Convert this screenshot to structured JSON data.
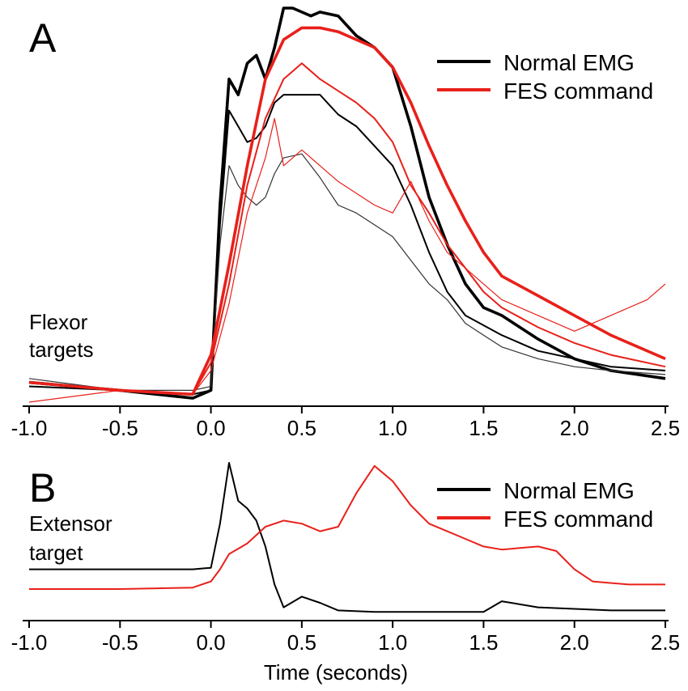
{
  "chart_data": [
    {
      "type": "line",
      "panel_label": "A",
      "side_label": [
        "Flexor",
        "targets"
      ],
      "xlabel": "",
      "ylabel": "",
      "xlim": [
        -1.0,
        2.5
      ],
      "x_ticks": [
        "-1.0",
        "-0.5",
        "0.0",
        "0.5",
        "1.0",
        "1.5",
        "2.0",
        "2.5"
      ],
      "legend_position": "top-right",
      "legend": [
        {
          "label": "Normal EMG",
          "color": "#000000"
        },
        {
          "label": "FES command",
          "color": "#e8201a"
        }
      ],
      "series": [
        {
          "group": "Normal EMG",
          "color": "#000000",
          "weight": "thick",
          "x": [
            -1.0,
            -0.5,
            -0.1,
            0.0,
            0.05,
            0.1,
            0.15,
            0.2,
            0.25,
            0.3,
            0.35,
            0.4,
            0.45,
            0.5,
            0.55,
            0.6,
            0.7,
            0.8,
            0.9,
            1.0,
            1.1,
            1.2,
            1.3,
            1.4,
            1.5,
            1.6,
            1.8,
            2.0,
            2.2,
            2.5
          ],
          "y": [
            0.05,
            0.03,
            0.01,
            0.03,
            0.5,
            0.82,
            0.78,
            0.86,
            0.88,
            0.82,
            0.9,
            1.0,
            1.0,
            0.99,
            0.98,
            0.99,
            0.98,
            0.93,
            0.9,
            0.85,
            0.7,
            0.52,
            0.4,
            0.3,
            0.24,
            0.22,
            0.16,
            0.11,
            0.08,
            0.06
          ]
        },
        {
          "group": "Normal EMG",
          "color": "#000000",
          "weight": "thin",
          "x": [
            -1.0,
            -0.5,
            -0.1,
            0.0,
            0.05,
            0.1,
            0.15,
            0.2,
            0.25,
            0.3,
            0.35,
            0.4,
            0.5,
            0.6,
            0.7,
            0.8,
            0.9,
            1.0,
            1.1,
            1.2,
            1.3,
            1.4,
            1.6,
            1.8,
            2.0,
            2.2,
            2.5
          ],
          "y": [
            0.04,
            0.03,
            0.02,
            0.03,
            0.45,
            0.74,
            0.7,
            0.66,
            0.67,
            0.7,
            0.76,
            0.78,
            0.78,
            0.78,
            0.73,
            0.7,
            0.65,
            0.6,
            0.5,
            0.38,
            0.28,
            0.22,
            0.17,
            0.13,
            0.11,
            0.09,
            0.08
          ]
        },
        {
          "group": "Normal EMG",
          "color": "#333333",
          "weight": "hair",
          "x": [
            -1.0,
            -0.5,
            -0.1,
            0.0,
            0.05,
            0.1,
            0.15,
            0.2,
            0.25,
            0.3,
            0.35,
            0.4,
            0.5,
            0.6,
            0.7,
            0.8,
            0.9,
            1.0,
            1.1,
            1.2,
            1.3,
            1.4,
            1.5,
            1.6,
            1.8,
            2.0,
            2.2,
            2.5
          ],
          "y": [
            0.06,
            0.03,
            0.03,
            0.04,
            0.4,
            0.6,
            0.55,
            0.52,
            0.5,
            0.52,
            0.58,
            0.62,
            0.63,
            0.57,
            0.5,
            0.48,
            0.45,
            0.42,
            0.36,
            0.3,
            0.26,
            0.2,
            0.17,
            0.14,
            0.11,
            0.09,
            0.08,
            0.07
          ]
        },
        {
          "group": "FES command",
          "color": "#e8201a",
          "weight": "thick",
          "x": [
            -1.0,
            -0.5,
            -0.1,
            0.0,
            0.1,
            0.2,
            0.3,
            0.4,
            0.5,
            0.6,
            0.7,
            0.8,
            0.9,
            1.0,
            1.1,
            1.2,
            1.3,
            1.4,
            1.5,
            1.6,
            1.8,
            2.0,
            2.2,
            2.5
          ],
          "y": [
            0.05,
            0.03,
            0.02,
            0.12,
            0.35,
            0.6,
            0.82,
            0.92,
            0.95,
            0.95,
            0.94,
            0.92,
            0.9,
            0.85,
            0.76,
            0.65,
            0.55,
            0.46,
            0.38,
            0.32,
            0.27,
            0.22,
            0.17,
            0.11
          ]
        },
        {
          "group": "FES command",
          "color": "#e8201a",
          "weight": "thin",
          "x": [
            -1.0,
            -0.5,
            -0.1,
            0.0,
            0.1,
            0.2,
            0.3,
            0.4,
            0.5,
            0.6,
            0.7,
            0.8,
            0.9,
            1.0,
            1.1,
            1.2,
            1.3,
            1.4,
            1.5,
            1.6,
            1.8,
            2.0,
            2.2,
            2.5
          ],
          "y": [
            0.05,
            0.03,
            0.02,
            0.1,
            0.3,
            0.55,
            0.72,
            0.82,
            0.86,
            0.82,
            0.79,
            0.76,
            0.72,
            0.66,
            0.55,
            0.48,
            0.4,
            0.34,
            0.28,
            0.24,
            0.19,
            0.15,
            0.12,
            0.09
          ]
        },
        {
          "group": "FES command",
          "color": "#e8201a",
          "weight": "hair",
          "x": [
            -1.0,
            -0.5,
            -0.1,
            0.0,
            0.1,
            0.2,
            0.3,
            0.35,
            0.4,
            0.5,
            0.6,
            0.7,
            0.8,
            0.9,
            1.0,
            1.1,
            1.2,
            1.3,
            1.4,
            1.5,
            1.6,
            1.8,
            2.0,
            2.2,
            2.4,
            2.5
          ],
          "y": [
            0.0,
            0.03,
            0.02,
            0.08,
            0.25,
            0.48,
            0.62,
            0.72,
            0.6,
            0.64,
            0.6,
            0.56,
            0.53,
            0.5,
            0.48,
            0.56,
            0.46,
            0.38,
            0.34,
            0.3,
            0.26,
            0.22,
            0.18,
            0.22,
            0.26,
            0.3
          ]
        }
      ]
    },
    {
      "type": "line",
      "panel_label": "B",
      "side_label": [
        "Extensor",
        "target"
      ],
      "xlabel": "Time (seconds)",
      "ylabel": "",
      "xlim": [
        -1.0,
        2.5
      ],
      "x_ticks": [
        "-1.0",
        "-0.5",
        "0.0",
        "0.5",
        "1.0",
        "1.5",
        "2.0",
        "2.5"
      ],
      "legend_position": "top-right",
      "legend": [
        {
          "label": "Normal EMG",
          "color": "#000000"
        },
        {
          "label": "FES command",
          "color": "#e8201a"
        }
      ],
      "series": [
        {
          "group": "Normal EMG",
          "color": "#000000",
          "weight": "thin",
          "x": [
            -1.0,
            -0.5,
            -0.1,
            0.0,
            0.05,
            0.1,
            0.15,
            0.2,
            0.25,
            0.3,
            0.35,
            0.4,
            0.5,
            0.6,
            0.7,
            0.9,
            1.2,
            1.5,
            1.6,
            1.8,
            2.0,
            2.2,
            2.5
          ],
          "y": [
            0.3,
            0.3,
            0.3,
            0.31,
            0.6,
            1.0,
            0.75,
            0.7,
            0.62,
            0.45,
            0.2,
            0.05,
            0.12,
            0.08,
            0.03,
            0.02,
            0.02,
            0.02,
            0.09,
            0.05,
            0.04,
            0.03,
            0.03
          ]
        },
        {
          "group": "FES command",
          "color": "#e8201a",
          "weight": "thin",
          "x": [
            -1.0,
            -0.5,
            -0.1,
            0.0,
            0.05,
            0.1,
            0.2,
            0.3,
            0.4,
            0.5,
            0.6,
            0.7,
            0.8,
            0.9,
            1.0,
            1.1,
            1.2,
            1.3,
            1.4,
            1.5,
            1.6,
            1.8,
            1.9,
            2.0,
            2.1,
            2.3,
            2.5
          ],
          "y": [
            0.17,
            0.17,
            0.18,
            0.22,
            0.3,
            0.4,
            0.47,
            0.58,
            0.62,
            0.6,
            0.55,
            0.58,
            0.8,
            0.98,
            0.88,
            0.72,
            0.6,
            0.55,
            0.5,
            0.45,
            0.43,
            0.45,
            0.42,
            0.3,
            0.22,
            0.2,
            0.2
          ]
        }
      ]
    }
  ]
}
